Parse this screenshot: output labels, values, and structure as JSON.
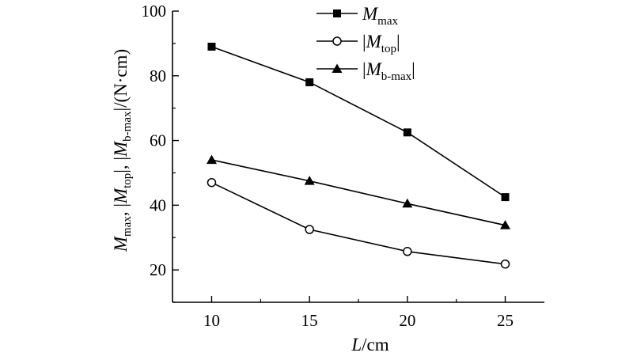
{
  "chart_data": {
    "type": "line",
    "x": [
      10,
      15,
      20,
      25
    ],
    "xlim": [
      8,
      27
    ],
    "ylim": [
      10,
      100
    ],
    "xticks": [
      "10",
      "15",
      "20",
      "25"
    ],
    "yticks": [
      "20",
      "40",
      "60",
      "80",
      "100"
    ],
    "xlabel": {
      "var": "L",
      "unit": "/cm"
    },
    "ylabel": {
      "m1": "M",
      "s1": "max",
      "sep1": ", |",
      "m2": "M",
      "s2": "top",
      "sep2": "|, |",
      "m3": "M",
      "s3": "b-max",
      "tail": "|/(N·cm)"
    },
    "grid": false,
    "legend_position": "top-center",
    "series": [
      {
        "name": "M_max",
        "marker": "square-filled",
        "values": [
          89,
          78,
          62.5,
          42.5
        ],
        "legend": {
          "pre": "",
          "var": "M",
          "sub": "max",
          "post": ""
        }
      },
      {
        "name": "|M_top|",
        "marker": "circle-open",
        "values": [
          47,
          32.5,
          25.7,
          21.8
        ],
        "legend": {
          "pre": "|",
          "var": "M",
          "sub": "top",
          "post": "|"
        }
      },
      {
        "name": "|M_b-max|",
        "marker": "triangle-filled",
        "values": [
          54,
          47.5,
          40.5,
          33.8
        ],
        "legend": {
          "pre": "|",
          "var": "M",
          "sub": "b-max",
          "post": "|"
        }
      }
    ]
  }
}
